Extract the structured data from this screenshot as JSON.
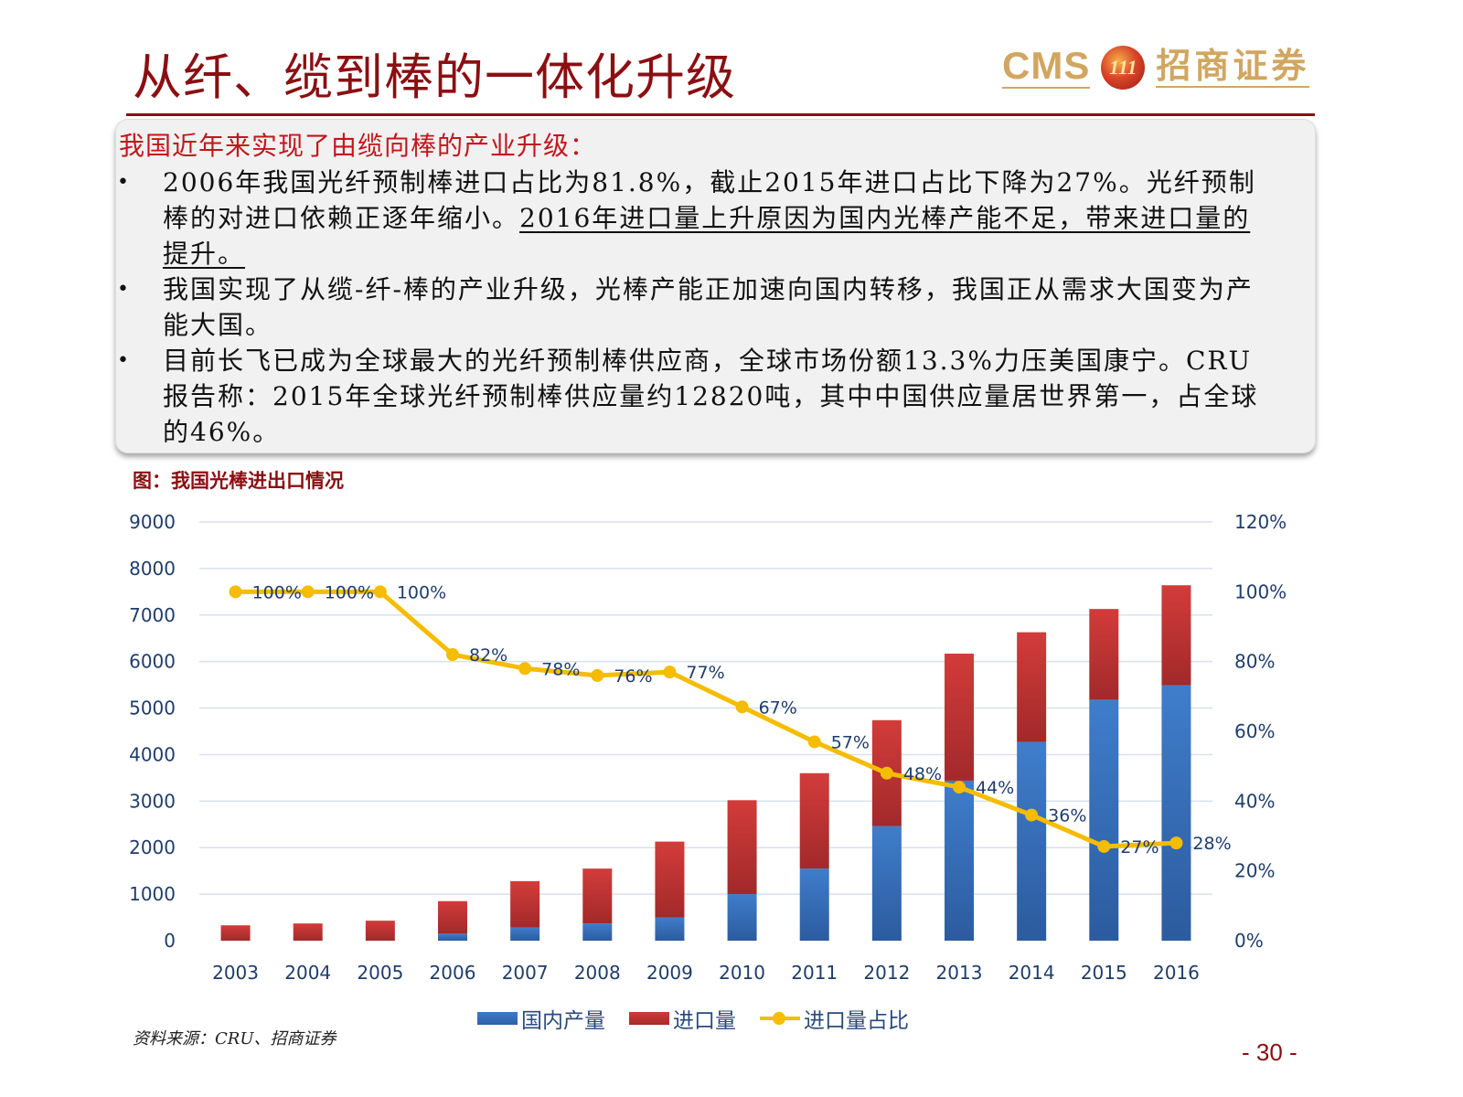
{
  "header": {
    "title": "从纤、缆到棒的一体化升级",
    "logo_latin": "CMS",
    "logo_emblem": "111",
    "logo_cn": "招商证券"
  },
  "textbox": {
    "heading": "我国近年来实现了由缆向棒的产业升级：",
    "bullets": [
      {
        "text": "2006年我国光纤预制棒进口占比为81.8%，截止2015年进口占比下降为27%。光纤预制棒的对进口依赖正逐年缩小。",
        "underlined": "2016年进口量上升原因为国内光棒产能不足，带来进口量的提升。"
      },
      {
        "text": "我国实现了从缆-纤-棒的产业升级，光棒产能正加速向国内转移，我国正从需求大国变为产能大国。"
      },
      {
        "text": "目前长飞已成为全球最大的光纤预制棒供应商，全球市场份额13.3%力压美国康宁。CRU报告称：2015年全球光纤预制棒供应量约12820吨，其中中国供应量居世界第一，占全球的46%。"
      }
    ]
  },
  "chart_caption": "图：我国光棒进出口情况",
  "chart_data": {
    "type": "bar",
    "title": "我国光棒进出口情况",
    "stacked": true,
    "categories": [
      "2003",
      "2004",
      "2005",
      "2006",
      "2007",
      "2008",
      "2009",
      "2010",
      "2011",
      "2012",
      "2013",
      "2014",
      "2015",
      "2016"
    ],
    "series": [
      {
        "name": "国内产量",
        "type": "bar",
        "axis": "left",
        "color": "#3a74c0",
        "values": [
          0,
          0,
          0,
          150,
          280,
          370,
          500,
          1000,
          1550,
          2460,
          3440,
          4270,
          5180,
          5490
        ]
      },
      {
        "name": "进口量",
        "type": "bar",
        "axis": "left",
        "color": "#c83232",
        "values": [
          330,
          370,
          430,
          700,
          1000,
          1180,
          1630,
          2020,
          2050,
          2280,
          2730,
          2360,
          1950,
          2150
        ]
      },
      {
        "name": "进口量占比",
        "type": "line",
        "axis": "right",
        "color": "#f5bc00",
        "values": [
          100,
          100,
          100,
          82,
          78,
          76,
          77,
          67,
          57,
          48,
          44,
          36,
          27,
          28
        ],
        "labels": [
          "100%",
          "100%",
          "100%",
          "82%",
          "78%",
          "76%",
          "77%",
          "67%",
          "57%",
          "48%",
          "44%",
          "36%",
          "27%",
          "28%"
        ]
      }
    ],
    "y_left": {
      "ylim": [
        0,
        9000
      ],
      "ticks": [
        "0",
        "1000",
        "2000",
        "3000",
        "4000",
        "5000",
        "6000",
        "7000",
        "8000",
        "9000"
      ]
    },
    "y_right": {
      "ylim": [
        0,
        120
      ],
      "ticks": [
        "0%",
        "20%",
        "40%",
        "60%",
        "80%",
        "100%",
        "120%"
      ]
    },
    "xlabel": "",
    "ylabel": "",
    "grid": true,
    "legend": [
      "国内产量",
      "进口量",
      "进口量占比"
    ],
    "legend_position": "bottom"
  },
  "footer": {
    "source": "资料来源：CRU、招商证券",
    "page": "- 30 -"
  }
}
